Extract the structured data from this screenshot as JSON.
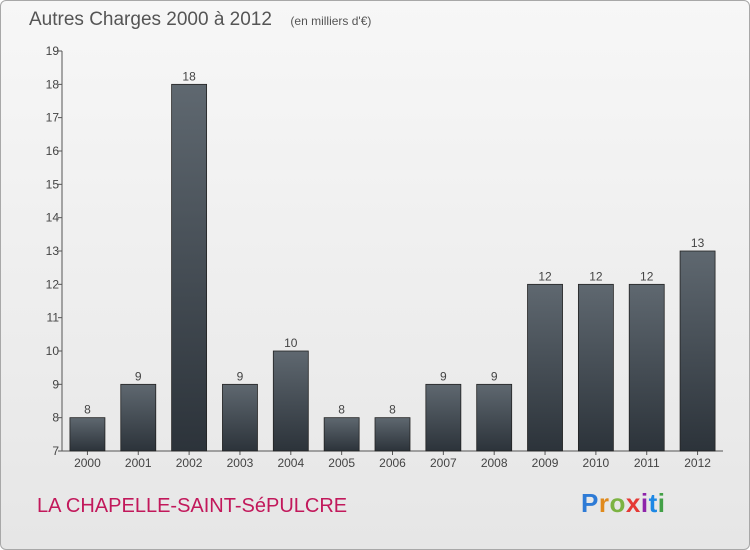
{
  "title": "Autres Charges 2000 à 2012",
  "unit_note": "(en milliers d'€)",
  "commune": "LA CHAPELLE-SAINT-SéPULCRE",
  "logo_text": "Proxiti",
  "colors": {
    "bar_top": "#5f6870",
    "bar_bottom": "#2c333a",
    "commune": "#c2185b",
    "text": "#444444"
  },
  "chart_data": {
    "type": "bar",
    "title": "Autres Charges 2000 à 2012",
    "xlabel": "",
    "ylabel": "",
    "categories": [
      "2000",
      "2001",
      "2002",
      "2003",
      "2004",
      "2005",
      "2006",
      "2007",
      "2008",
      "2009",
      "2010",
      "2011",
      "2012"
    ],
    "values": [
      8,
      9,
      18,
      9,
      10,
      8,
      8,
      9,
      9,
      12,
      12,
      12,
      13
    ],
    "ylim": [
      7,
      19
    ],
    "yticks": [
      7,
      8,
      9,
      10,
      11,
      12,
      13,
      14,
      15,
      16,
      17,
      18,
      19
    ],
    "grid": false,
    "data_labels": true
  }
}
